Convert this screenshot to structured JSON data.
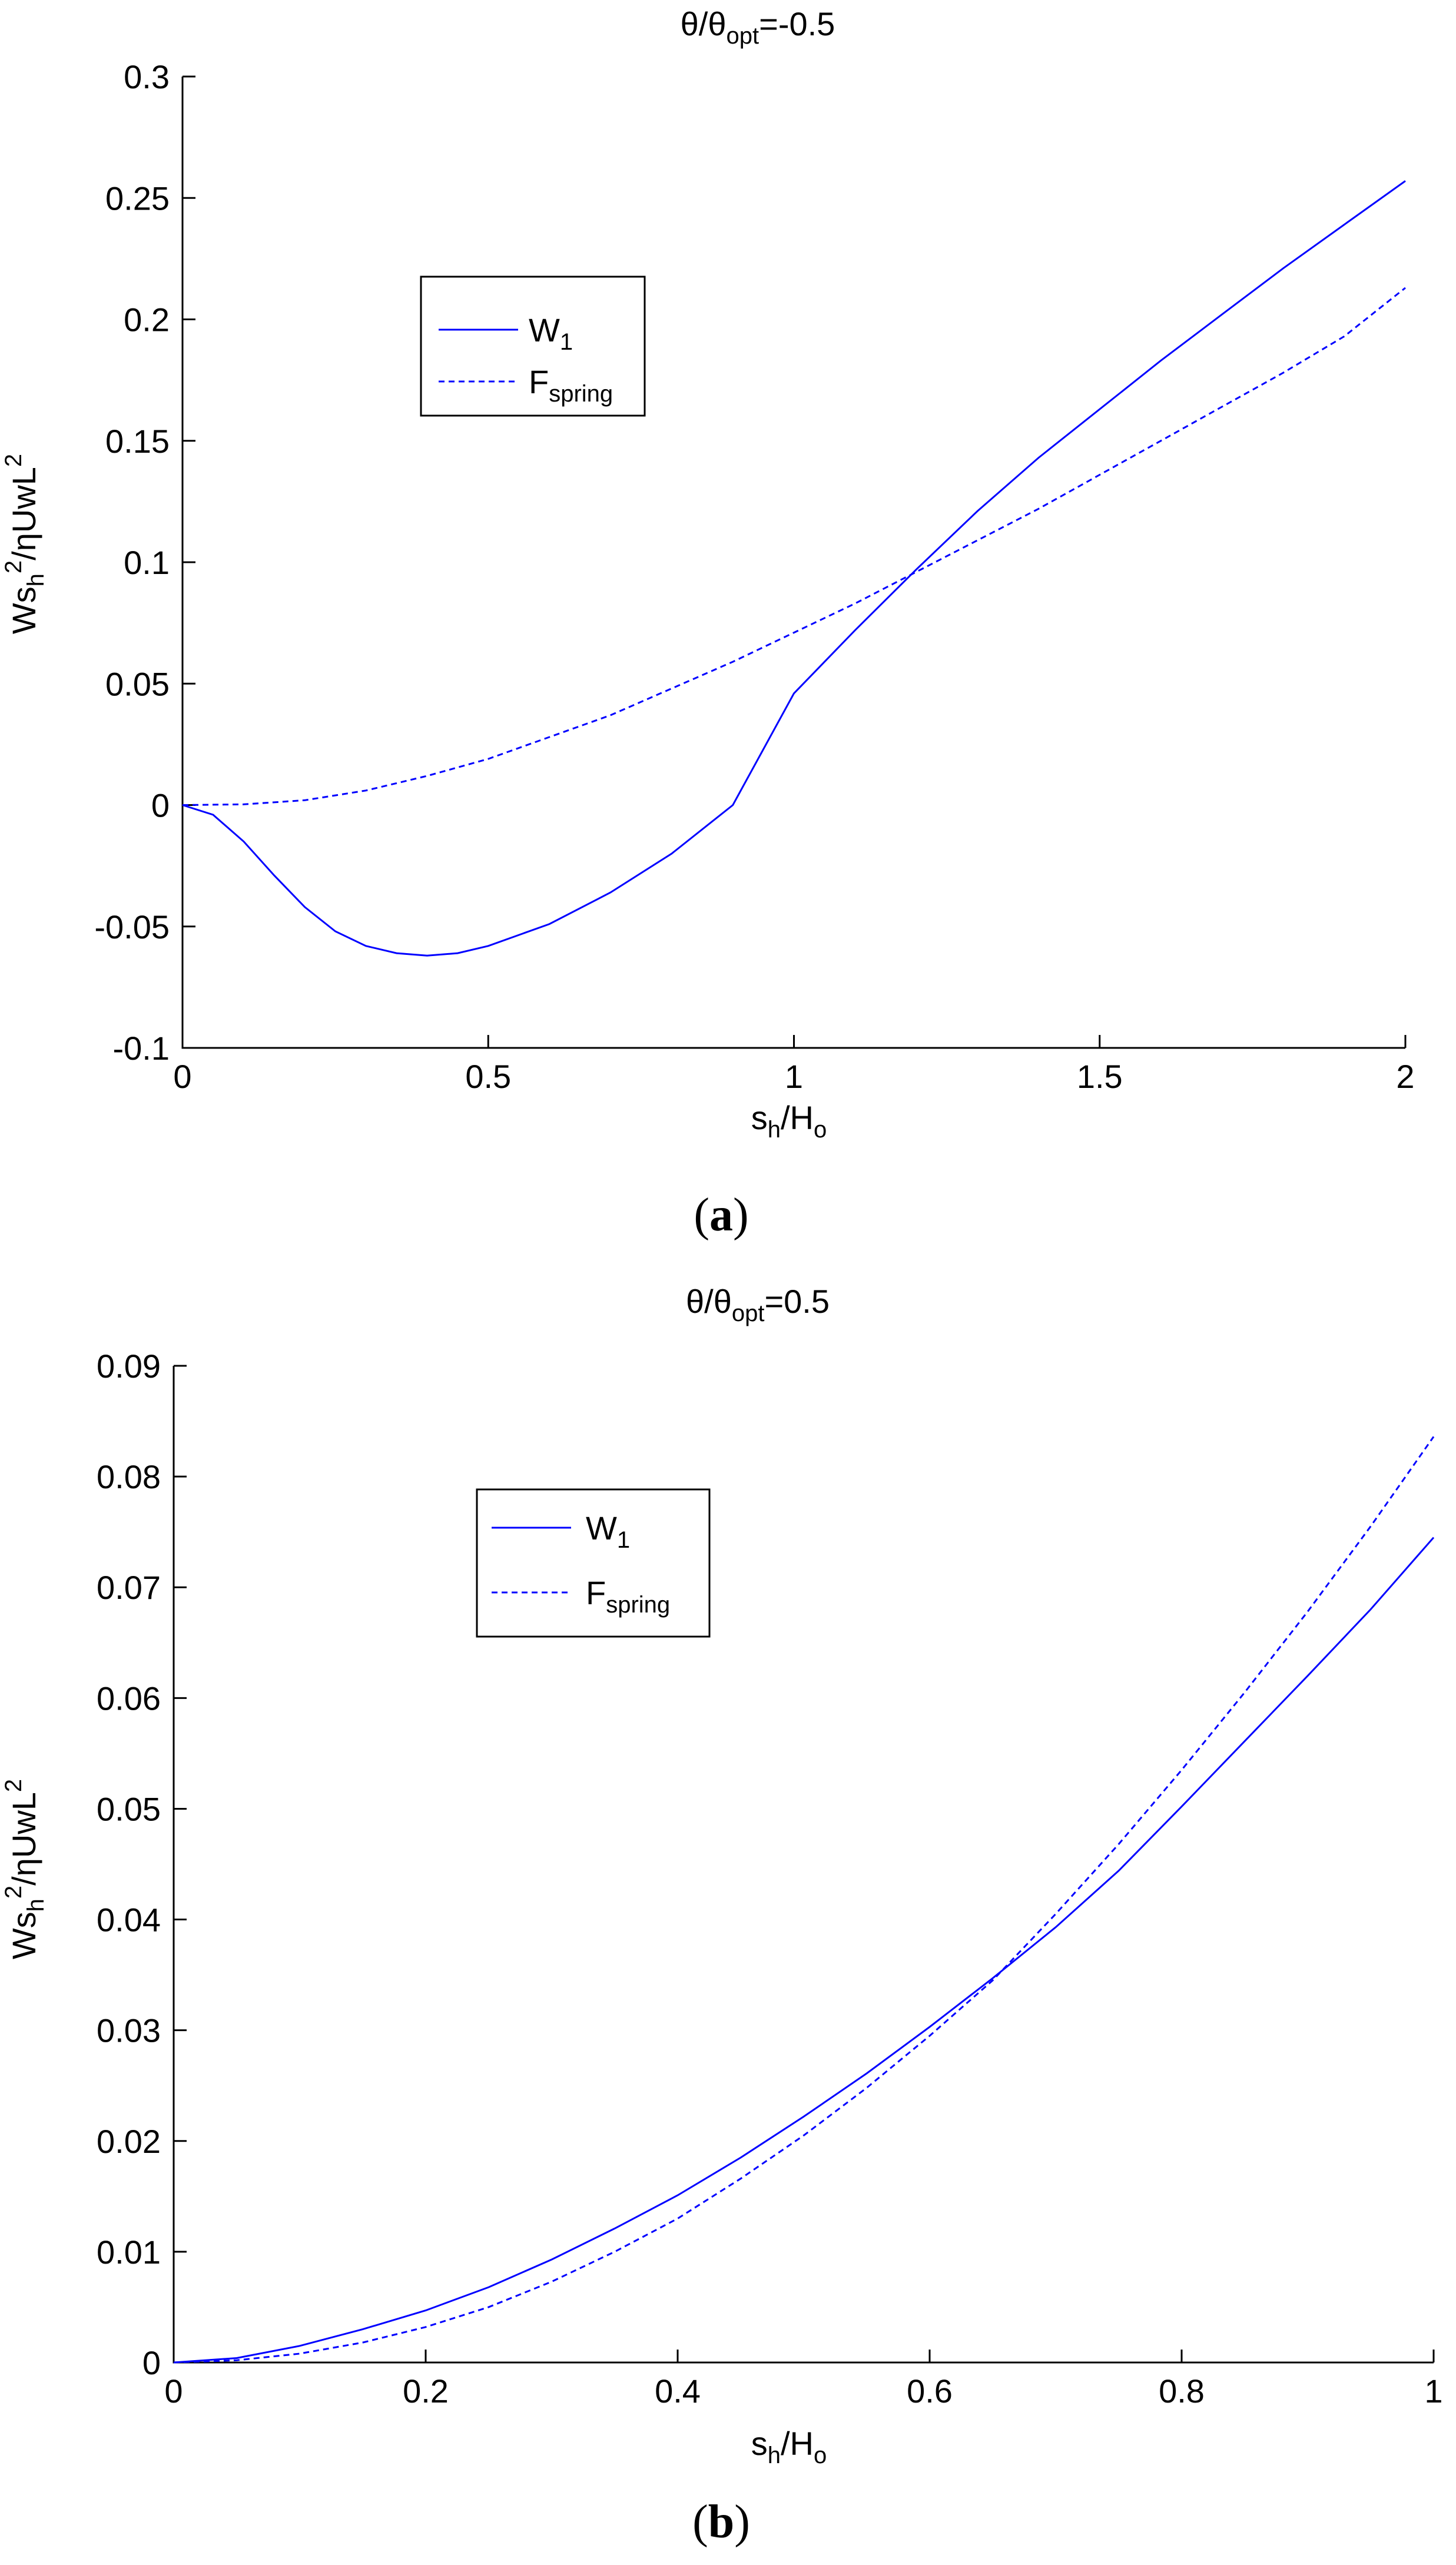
{
  "colors": {
    "series": "#0000ff",
    "axes": "#000000",
    "background": "#ffffff"
  },
  "chart_data": [
    {
      "type": "line",
      "panel_label": "a",
      "title": {
        "prefix": "θ/θ",
        "sub": "opt",
        "suffix": "=-0.5"
      },
      "xlabel": {
        "base": "s",
        "sub": "h",
        "mid": "/H",
        "sub2": "o"
      },
      "ylabel": {
        "p1": "Ws",
        "sub": "h",
        "sup": "2",
        "p2": "/ηUwL",
        "sup2": "2"
      },
      "xlim": [
        0,
        2
      ],
      "ylim": [
        -0.1,
        0.3
      ],
      "xticks": [
        0,
        0.5,
        1,
        1.5,
        2
      ],
      "xtick_labels": [
        "0",
        "0.5",
        "1",
        "1.5",
        "2"
      ],
      "yticks": [
        -0.1,
        -0.05,
        0,
        0.05,
        0.1,
        0.15,
        0.2,
        0.25,
        0.3
      ],
      "ytick_labels": [
        "-0.1",
        "-0.05",
        "0",
        "0.05",
        "0.1",
        "0.15",
        "0.2",
        "0.25",
        "0.3"
      ],
      "grid": false,
      "legend_position": "upper-left",
      "series": [
        {
          "name": "W1",
          "name_base": "W",
          "name_sub": "1",
          "style": "solid",
          "x": [
            0,
            0.05,
            0.1,
            0.15,
            0.2,
            0.25,
            0.3,
            0.35,
            0.4,
            0.45,
            0.5,
            0.6,
            0.7,
            0.8,
            0.9,
            1.0,
            1.1,
            1.2,
            1.3,
            1.4,
            1.5,
            1.6,
            1.7,
            1.8,
            1.9,
            2.0
          ],
          "y": [
            0,
            -0.004,
            -0.015,
            -0.029,
            -0.042,
            -0.052,
            -0.058,
            -0.061,
            -0.062,
            -0.061,
            -0.058,
            -0.049,
            -0.036,
            -0.02,
            0.0,
            0.046,
            0.072,
            0.097,
            0.121,
            0.143,
            0.163,
            0.183,
            0.202,
            0.221,
            0.239,
            0.257
          ]
        },
        {
          "name": "Fspring",
          "name_base": "F",
          "name_sub": "spring",
          "style": "dashed",
          "x": [
            0,
            0.1,
            0.2,
            0.3,
            0.4,
            0.5,
            0.6,
            0.7,
            0.8,
            0.9,
            1.0,
            1.1,
            1.2,
            1.3,
            1.4,
            1.5,
            1.6,
            1.7,
            1.8,
            1.9,
            2.0
          ],
          "y": [
            0,
            0.0003,
            0.002,
            0.006,
            0.012,
            0.019,
            0.028,
            0.037,
            0.048,
            0.059,
            0.071,
            0.083,
            0.096,
            0.109,
            0.122,
            0.136,
            0.15,
            0.164,
            0.178,
            0.193,
            0.213
          ]
        }
      ]
    },
    {
      "type": "line",
      "panel_label": "b",
      "title": {
        "prefix": "θ/θ",
        "sub": "opt",
        "suffix": "=0.5"
      },
      "xlabel": {
        "base": "s",
        "sub": "h",
        "mid": "/H",
        "sub2": "o"
      },
      "ylabel": {
        "p1": "Ws",
        "sub": "h",
        "sup": "2",
        "p2": "/ηUwL",
        "sup2": "2"
      },
      "xlim": [
        0,
        1
      ],
      "ylim": [
        0,
        0.09
      ],
      "xticks": [
        0,
        0.2,
        0.4,
        0.6,
        0.8,
        1
      ],
      "xtick_labels": [
        "0",
        "0.2",
        "0.4",
        "0.6",
        "0.8",
        "1"
      ],
      "yticks": [
        0,
        0.01,
        0.02,
        0.03,
        0.04,
        0.05,
        0.06,
        0.07,
        0.08,
        0.09
      ],
      "ytick_labels": [
        "0",
        "0.01",
        "0.02",
        "0.03",
        "0.04",
        "0.05",
        "0.06",
        "0.07",
        "0.08",
        "0.09"
      ],
      "grid": false,
      "legend_position": "upper-left",
      "series": [
        {
          "name": "W1",
          "name_base": "W",
          "name_sub": "1",
          "style": "solid",
          "x": [
            0,
            0.05,
            0.1,
            0.15,
            0.2,
            0.25,
            0.3,
            0.35,
            0.4,
            0.45,
            0.5,
            0.55,
            0.6,
            0.65,
            0.7,
            0.75,
            0.8,
            0.85,
            0.9,
            0.95,
            1.0
          ],
          "y": [
            0,
            0.0004,
            0.0015,
            0.003,
            0.0047,
            0.0068,
            0.0093,
            0.0121,
            0.0151,
            0.0185,
            0.0222,
            0.0261,
            0.0303,
            0.0347,
            0.0393,
            0.0444,
            0.0502,
            0.0561,
            0.062,
            0.068,
            0.0745
          ]
        },
        {
          "name": "Fspring",
          "name_base": "F",
          "name_sub": "spring",
          "style": "dashed",
          "x": [
            0,
            0.05,
            0.1,
            0.15,
            0.2,
            0.25,
            0.3,
            0.35,
            0.4,
            0.45,
            0.5,
            0.55,
            0.6,
            0.65,
            0.7,
            0.75,
            0.8,
            0.85,
            0.9,
            0.95,
            1.0
          ],
          "y": [
            0,
            0.0002,
            0.0008,
            0.0018,
            0.0032,
            0.005,
            0.0073,
            0.01,
            0.013,
            0.0166,
            0.0205,
            0.0248,
            0.0295,
            0.0345,
            0.0405,
            0.0468,
            0.0535,
            0.0605,
            0.0678,
            0.0755,
            0.0836
          ]
        }
      ]
    }
  ]
}
